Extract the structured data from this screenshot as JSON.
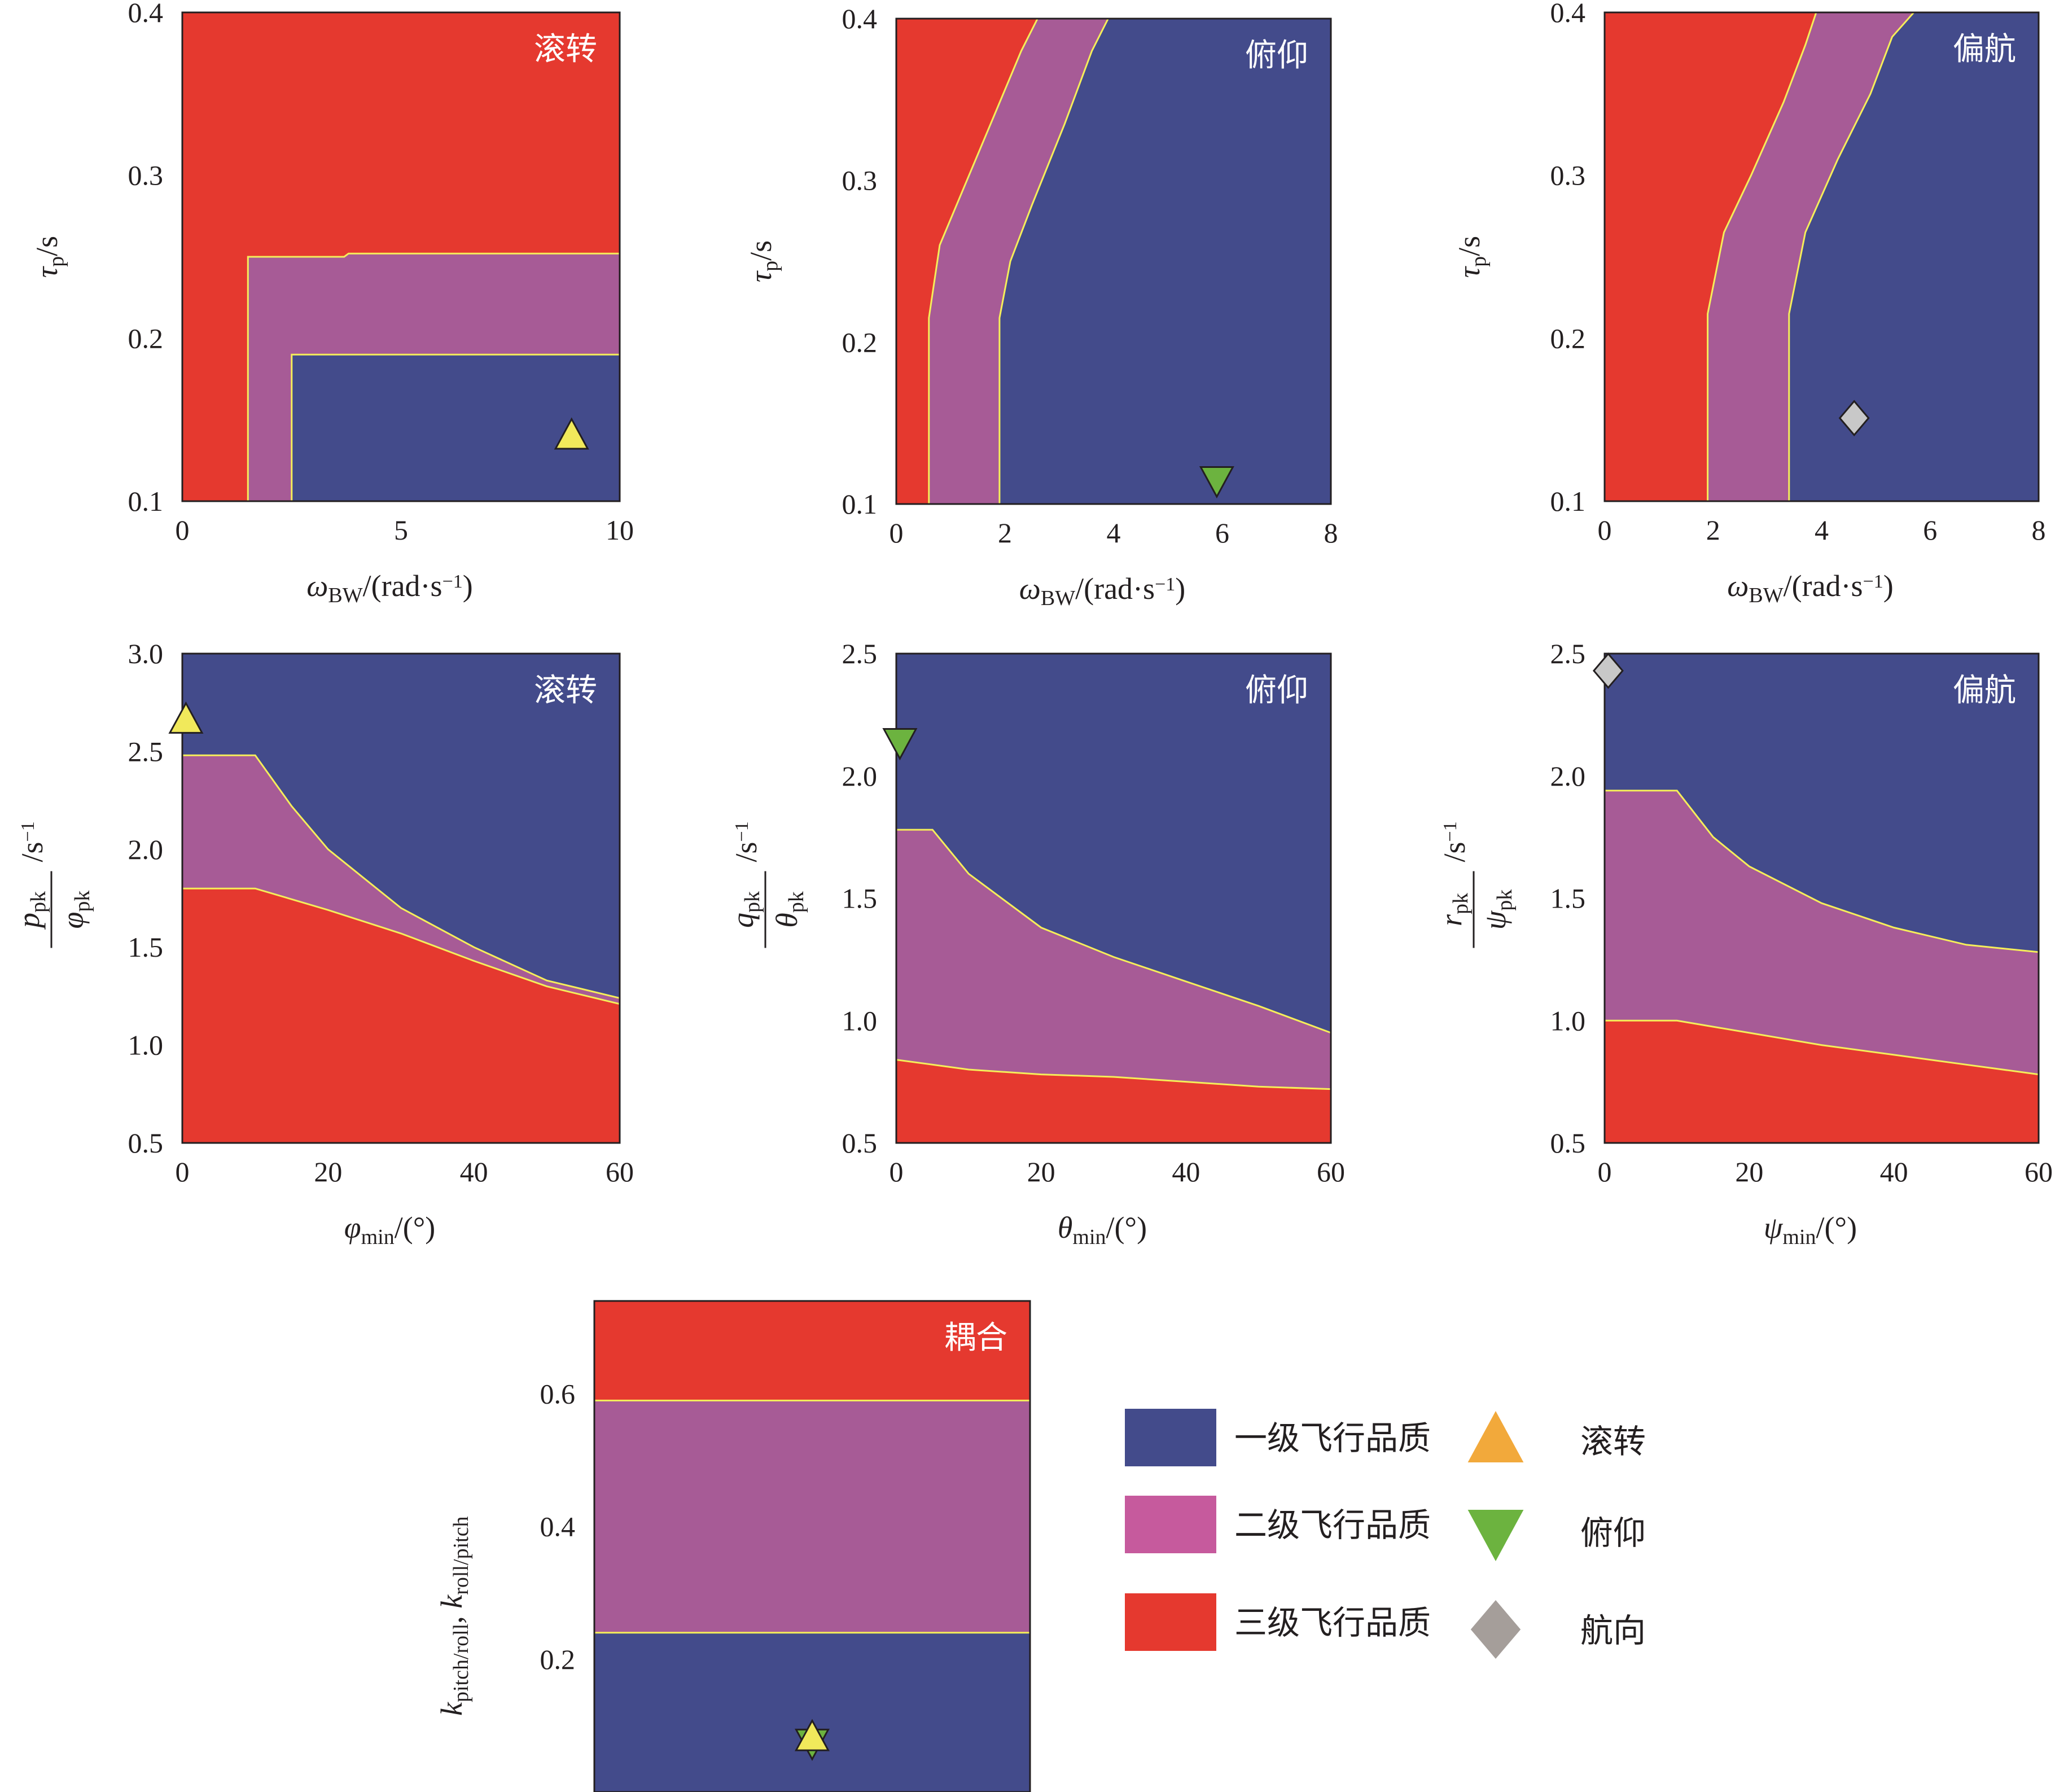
{
  "colors": {
    "level1": "#434b8b",
    "level2": "#a75b96",
    "level3": "#e5392f",
    "boundary": "#f5ee5a",
    "legend_level2": "#c65a9d",
    "roll_marker": "#f1e95b",
    "roll_legend": "#f2a93b",
    "pitch_marker": "#6cb33f",
    "yaw_marker": "#c8c8c8",
    "heading_legend": "#a59e9a"
  },
  "chart_data": [
    {
      "id": "roll-bandwidth",
      "type": "region",
      "title": "滚转",
      "xlabel": "ω_BW/(rad·s⁻¹)",
      "ylabel": "τ_p/s",
      "xlim": [
        0,
        10
      ],
      "ylim": [
        0.1,
        0.4
      ],
      "xticks": [
        0,
        5,
        10
      ],
      "yticks": [
        0.1,
        0.2,
        0.3,
        0.4
      ],
      "tick_labels_x": [
        "0",
        "5",
        "10"
      ],
      "tick_labels_y": [
        "0.1",
        "0.2",
        "0.3",
        "0.4"
      ],
      "level1": [
        [
          2.5,
          0.1
        ],
        [
          2.5,
          0.19
        ],
        [
          10,
          0.19
        ],
        [
          10,
          0.1
        ]
      ],
      "level2": [
        [
          1.5,
          0.1
        ],
        [
          1.5,
          0.25
        ],
        [
          3.7,
          0.25
        ],
        [
          3.8,
          0.252
        ],
        [
          10,
          0.252
        ],
        [
          10,
          0.19
        ],
        [
          2.5,
          0.19
        ],
        [
          2.5,
          0.1
        ]
      ],
      "boundaries": [
        [
          [
            1.5,
            0.1
          ],
          [
            1.5,
            0.25
          ],
          [
            3.7,
            0.25
          ],
          [
            3.8,
            0.252
          ],
          [
            10,
            0.252
          ]
        ],
        [
          [
            2.5,
            0.1
          ],
          [
            2.5,
            0.19
          ],
          [
            10,
            0.19
          ]
        ]
      ],
      "marker": {
        "shape": "triangle-up",
        "x": 8.9,
        "y": 0.14,
        "label": "滚转"
      }
    },
    {
      "id": "pitch-bandwidth",
      "type": "region",
      "title": "俯仰",
      "xlabel": "ω_BW/(rad·s⁻¹)",
      "ylabel": "τ_p/s",
      "xlim": [
        0,
        8
      ],
      "ylim": [
        0.1,
        0.4
      ],
      "xticks": [
        0,
        2,
        4,
        6,
        8
      ],
      "yticks": [
        0.1,
        0.2,
        0.3,
        0.4
      ],
      "tick_labels_x": [
        "0",
        "2",
        "4",
        "6",
        "8"
      ],
      "tick_labels_y": [
        "0.1",
        "0.2",
        "0.3",
        "0.4"
      ],
      "level1": [
        [
          1.9,
          0.1
        ],
        [
          1.9,
          0.215
        ],
        [
          2.1,
          0.25
        ],
        [
          2.5,
          0.285
        ],
        [
          3.1,
          0.335
        ],
        [
          3.6,
          0.38
        ],
        [
          3.9,
          0.4
        ],
        [
          8,
          0.4
        ],
        [
          8,
          0.1
        ]
      ],
      "level2": [
        [
          0.6,
          0.1
        ],
        [
          0.6,
          0.215
        ],
        [
          0.8,
          0.26
        ],
        [
          1.3,
          0.3
        ],
        [
          1.8,
          0.34
        ],
        [
          2.3,
          0.38
        ],
        [
          2.6,
          0.4
        ],
        [
          3.9,
          0.4
        ],
        [
          3.6,
          0.38
        ],
        [
          3.1,
          0.335
        ],
        [
          2.5,
          0.285
        ],
        [
          2.1,
          0.25
        ],
        [
          1.9,
          0.215
        ],
        [
          1.9,
          0.1
        ]
      ],
      "boundaries": [
        [
          [
            0.6,
            0.1
          ],
          [
            0.6,
            0.215
          ],
          [
            0.8,
            0.26
          ],
          [
            1.3,
            0.3
          ],
          [
            1.8,
            0.34
          ],
          [
            2.3,
            0.38
          ],
          [
            2.6,
            0.4
          ]
        ],
        [
          [
            1.9,
            0.1
          ],
          [
            1.9,
            0.215
          ],
          [
            2.1,
            0.25
          ],
          [
            2.5,
            0.285
          ],
          [
            3.1,
            0.335
          ],
          [
            3.6,
            0.38
          ],
          [
            3.9,
            0.4
          ]
        ]
      ],
      "marker": {
        "shape": "triangle-down",
        "x": 5.9,
        "y": 0.115,
        "label": "俯仰"
      }
    },
    {
      "id": "yaw-bandwidth",
      "type": "region",
      "title": "偏航",
      "xlabel": "ω_BW/(rad·s⁻¹)",
      "ylabel": "τ_p/s",
      "xlim": [
        0,
        8
      ],
      "ylim": [
        0.1,
        0.4
      ],
      "xticks": [
        0,
        2,
        4,
        6,
        8
      ],
      "yticks": [
        0.1,
        0.2,
        0.3,
        0.4
      ],
      "tick_labels_x": [
        "0",
        "2",
        "4",
        "6",
        "8"
      ],
      "tick_labels_y": [
        "0.1",
        "0.2",
        "0.3",
        "0.4"
      ],
      "level1": [
        [
          3.4,
          0.1
        ],
        [
          3.4,
          0.215
        ],
        [
          3.7,
          0.265
        ],
        [
          4.3,
          0.31
        ],
        [
          4.9,
          0.35
        ],
        [
          5.3,
          0.385
        ],
        [
          5.7,
          0.4
        ],
        [
          8,
          0.4
        ],
        [
          8,
          0.1
        ]
      ],
      "level2": [
        [
          1.9,
          0.1
        ],
        [
          1.9,
          0.215
        ],
        [
          2.2,
          0.265
        ],
        [
          2.7,
          0.3
        ],
        [
          3.3,
          0.345
        ],
        [
          3.7,
          0.38
        ],
        [
          3.9,
          0.4
        ],
        [
          5.7,
          0.4
        ],
        [
          5.3,
          0.385
        ],
        [
          4.9,
          0.35
        ],
        [
          4.3,
          0.31
        ],
        [
          3.7,
          0.265
        ],
        [
          3.4,
          0.215
        ],
        [
          3.4,
          0.1
        ]
      ],
      "boundaries": [
        [
          [
            1.9,
            0.1
          ],
          [
            1.9,
            0.215
          ],
          [
            2.2,
            0.265
          ],
          [
            2.7,
            0.3
          ],
          [
            3.3,
            0.345
          ],
          [
            3.7,
            0.38
          ],
          [
            3.9,
            0.4
          ]
        ],
        [
          [
            3.4,
            0.1
          ],
          [
            3.4,
            0.215
          ],
          [
            3.7,
            0.265
          ],
          [
            4.3,
            0.31
          ],
          [
            4.9,
            0.35
          ],
          [
            5.3,
            0.385
          ],
          [
            5.7,
            0.4
          ]
        ]
      ],
      "marker": {
        "shape": "diamond",
        "x": 4.6,
        "y": 0.151,
        "label": "航向"
      }
    },
    {
      "id": "roll-attitude",
      "type": "region",
      "title": "滚转",
      "xlabel": "φ_min/(°)",
      "ylabel": "p_pk/φ_pk /s⁻¹",
      "xlim": [
        0,
        60
      ],
      "ylim": [
        0.5,
        3.0
      ],
      "xticks": [
        0,
        20,
        40,
        60
      ],
      "yticks": [
        0.5,
        1.0,
        1.5,
        2.0,
        2.5,
        3.0
      ],
      "tick_labels_x": [
        "0",
        "20",
        "40",
        "60"
      ],
      "tick_labels_y": [
        "0.5",
        "1.0",
        "1.5",
        "2.0",
        "2.5",
        "3.0"
      ],
      "level1": [
        [
          0,
          2.48
        ],
        [
          10,
          2.48
        ],
        [
          15,
          2.22
        ],
        [
          20,
          2.0
        ],
        [
          30,
          1.7
        ],
        [
          40,
          1.5
        ],
        [
          50,
          1.33
        ],
        [
          60,
          1.24
        ],
        [
          60,
          3.0
        ],
        [
          0,
          3.0
        ]
      ],
      "level2": [
        [
          0,
          1.8
        ],
        [
          10,
          1.8
        ],
        [
          20,
          1.69
        ],
        [
          30,
          1.57
        ],
        [
          40,
          1.43
        ],
        [
          50,
          1.3
        ],
        [
          60,
          1.21
        ],
        [
          60,
          1.24
        ],
        [
          50,
          1.33
        ],
        [
          40,
          1.5
        ],
        [
          30,
          1.7
        ],
        [
          20,
          2.0
        ],
        [
          15,
          2.22
        ],
        [
          10,
          2.48
        ],
        [
          0,
          2.48
        ]
      ],
      "boundaries": [
        [
          [
            0,
            2.48
          ],
          [
            10,
            2.48
          ],
          [
            15,
            2.22
          ],
          [
            20,
            2.0
          ],
          [
            30,
            1.7
          ],
          [
            40,
            1.5
          ],
          [
            50,
            1.33
          ],
          [
            60,
            1.24
          ]
        ],
        [
          [
            0,
            1.8
          ],
          [
            10,
            1.8
          ],
          [
            20,
            1.69
          ],
          [
            30,
            1.57
          ],
          [
            40,
            1.43
          ],
          [
            50,
            1.3
          ],
          [
            60,
            1.21
          ]
        ]
      ],
      "marker": {
        "shape": "triangle-up",
        "x": 0.5,
        "y": 2.66,
        "label": "滚转"
      }
    },
    {
      "id": "pitch-attitude",
      "type": "region",
      "title": "俯仰",
      "xlabel": "θ_min/(°)",
      "ylabel": "q_pk/θ_pk /s⁻¹",
      "xlim": [
        0,
        60
      ],
      "ylim": [
        0.5,
        2.5
      ],
      "xticks": [
        0,
        20,
        40,
        60
      ],
      "yticks": [
        0.5,
        1.0,
        1.5,
        2.0,
        2.5
      ],
      "tick_labels_x": [
        "0",
        "20",
        "40",
        "60"
      ],
      "tick_labels_y": [
        "0.5",
        "1.0",
        "1.5",
        "2.0",
        "2.5"
      ],
      "level1": [
        [
          0,
          1.78
        ],
        [
          5,
          1.78
        ],
        [
          10,
          1.6
        ],
        [
          20,
          1.38
        ],
        [
          30,
          1.26
        ],
        [
          40,
          1.16
        ],
        [
          50,
          1.06
        ],
        [
          60,
          0.95
        ],
        [
          60,
          2.5
        ],
        [
          0,
          2.5
        ]
      ],
      "level2": [
        [
          0,
          0.84
        ],
        [
          10,
          0.8
        ],
        [
          20,
          0.78
        ],
        [
          30,
          0.77
        ],
        [
          40,
          0.75
        ],
        [
          50,
          0.73
        ],
        [
          60,
          0.72
        ],
        [
          60,
          0.95
        ],
        [
          50,
          1.06
        ],
        [
          40,
          1.16
        ],
        [
          30,
          1.26
        ],
        [
          20,
          1.38
        ],
        [
          10,
          1.6
        ],
        [
          5,
          1.78
        ],
        [
          0,
          1.78
        ]
      ],
      "boundaries": [
        [
          [
            0,
            1.78
          ],
          [
            5,
            1.78
          ],
          [
            10,
            1.6
          ],
          [
            20,
            1.38
          ],
          [
            30,
            1.26
          ],
          [
            40,
            1.16
          ],
          [
            50,
            1.06
          ],
          [
            60,
            0.95
          ]
        ],
        [
          [
            0,
            0.84
          ],
          [
            10,
            0.8
          ],
          [
            20,
            0.78
          ],
          [
            30,
            0.77
          ],
          [
            40,
            0.75
          ],
          [
            50,
            0.73
          ],
          [
            60,
            0.72
          ]
        ]
      ],
      "marker": {
        "shape": "triangle-down",
        "x": 0.5,
        "y": 2.14,
        "label": "俯仰"
      }
    },
    {
      "id": "yaw-attitude",
      "type": "region",
      "title": "偏航",
      "xlabel": "ψ_min/(°)",
      "ylabel": "r_pk/ψ_pk /s⁻¹",
      "xlim": [
        0,
        60
      ],
      "ylim": [
        0.5,
        2.5
      ],
      "xticks": [
        0,
        20,
        40,
        60
      ],
      "yticks": [
        0.5,
        1.0,
        1.5,
        2.0,
        2.5
      ],
      "tick_labels_x": [
        "0",
        "20",
        "40",
        "60"
      ],
      "tick_labels_y": [
        "0.5",
        "1.0",
        "1.5",
        "2.0",
        "2.5"
      ],
      "level1": [
        [
          0,
          1.94
        ],
        [
          10,
          1.94
        ],
        [
          15,
          1.75
        ],
        [
          20,
          1.63
        ],
        [
          30,
          1.48
        ],
        [
          40,
          1.38
        ],
        [
          50,
          1.31
        ],
        [
          60,
          1.28
        ],
        [
          60,
          2.5
        ],
        [
          0,
          2.5
        ]
      ],
      "level2": [
        [
          0,
          1.0
        ],
        [
          10,
          1.0
        ],
        [
          20,
          0.95
        ],
        [
          30,
          0.9
        ],
        [
          40,
          0.86
        ],
        [
          50,
          0.82
        ],
        [
          60,
          0.78
        ],
        [
          60,
          1.28
        ],
        [
          50,
          1.31
        ],
        [
          40,
          1.38
        ],
        [
          30,
          1.48
        ],
        [
          20,
          1.63
        ],
        [
          15,
          1.75
        ],
        [
          10,
          1.94
        ],
        [
          0,
          1.94
        ]
      ],
      "boundaries": [
        [
          [
            0,
            1.94
          ],
          [
            10,
            1.94
          ],
          [
            15,
            1.75
          ],
          [
            20,
            1.63
          ],
          [
            30,
            1.48
          ],
          [
            40,
            1.38
          ],
          [
            50,
            1.31
          ],
          [
            60,
            1.28
          ]
        ],
        [
          [
            0,
            1.0
          ],
          [
            10,
            1.0
          ],
          [
            20,
            0.95
          ],
          [
            30,
            0.9
          ],
          [
            40,
            0.86
          ],
          [
            50,
            0.82
          ],
          [
            60,
            0.78
          ]
        ]
      ],
      "marker": {
        "shape": "diamond",
        "x": 0.5,
        "y": 2.43,
        "label": "航向"
      }
    },
    {
      "id": "coupling",
      "type": "region",
      "title": "耦合",
      "xlabel": "",
      "ylabel": "k_pitch/roll, k_roll/pitch",
      "xlim": [
        0,
        1
      ],
      "ylim": [
        0.0,
        0.74
      ],
      "xticks": [],
      "yticks": [
        0.2,
        0.4,
        0.6
      ],
      "tick_labels_x": [],
      "tick_labels_y": [
        "0.2",
        "0.4",
        "0.6"
      ],
      "level1": [
        [
          0,
          0.0
        ],
        [
          0,
          0.24
        ],
        [
          1,
          0.24
        ],
        [
          1,
          0.0
        ]
      ],
      "level2": [
        [
          0,
          0.24
        ],
        [
          0,
          0.59
        ],
        [
          1,
          0.59
        ],
        [
          1,
          0.24
        ]
      ],
      "boundaries": [
        [
          [
            0,
            0.59
          ],
          [
            1,
            0.59
          ]
        ],
        [
          [
            0,
            0.24
          ],
          [
            1,
            0.24
          ]
        ]
      ],
      "markers": [
        {
          "shape": "triangle-down",
          "x": 0.5,
          "y": 0.075,
          "label": "俯仰"
        },
        {
          "shape": "triangle-up",
          "x": 0.5,
          "y": 0.082,
          "label": "滚转"
        }
      ]
    }
  ],
  "legend": {
    "levels": [
      {
        "name": "level1",
        "label": "一级飞行品质"
      },
      {
        "name": "level2",
        "label": "二级飞行品质"
      },
      {
        "name": "level3",
        "label": "三级飞行品质"
      }
    ],
    "markers": [
      {
        "shape": "triangle-up",
        "label": "滚转"
      },
      {
        "shape": "triangle-down",
        "label": "俯仰"
      },
      {
        "shape": "diamond",
        "label": "航向"
      }
    ]
  }
}
